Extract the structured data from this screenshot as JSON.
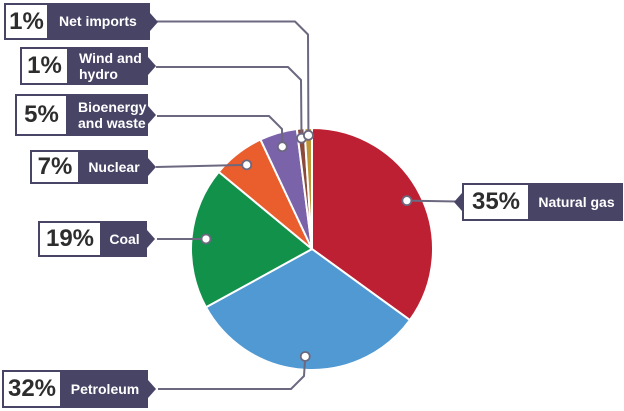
{
  "chart_data": {
    "type": "pie",
    "title": "",
    "unit": "%",
    "direction": "clockwise",
    "start_angle_deg": 0,
    "legend_position": "callout-labels",
    "slices": [
      {
        "label": "Natural gas",
        "value": 35,
        "pct_text": "35%",
        "color": "#be2033"
      },
      {
        "label": "Petroleum",
        "value": 32,
        "pct_text": "32%",
        "color": "#5099d3"
      },
      {
        "label": "Coal",
        "value": 19,
        "pct_text": "19%",
        "color": "#12914a"
      },
      {
        "label": "Nuclear",
        "value": 7,
        "pct_text": "7%",
        "color": "#ea5d2d"
      },
      {
        "label": "Bioenergy and waste",
        "value": 5,
        "pct_text": "5%",
        "color": "#7b63a9"
      },
      {
        "label": "Wind and hydro",
        "value": 1,
        "pct_text": "1%",
        "color": "#8a4b3c"
      },
      {
        "label": "Net imports",
        "value": 1,
        "pct_text": "1%",
        "color": "#bf9434"
      }
    ],
    "colors": {
      "label_bg": "#474466",
      "label_text": "#ffffff",
      "pct_text": "#2d2d2d",
      "leader_line": "#6b6880",
      "slice_outline": "#ffffff",
      "background": "#ffffff"
    }
  }
}
